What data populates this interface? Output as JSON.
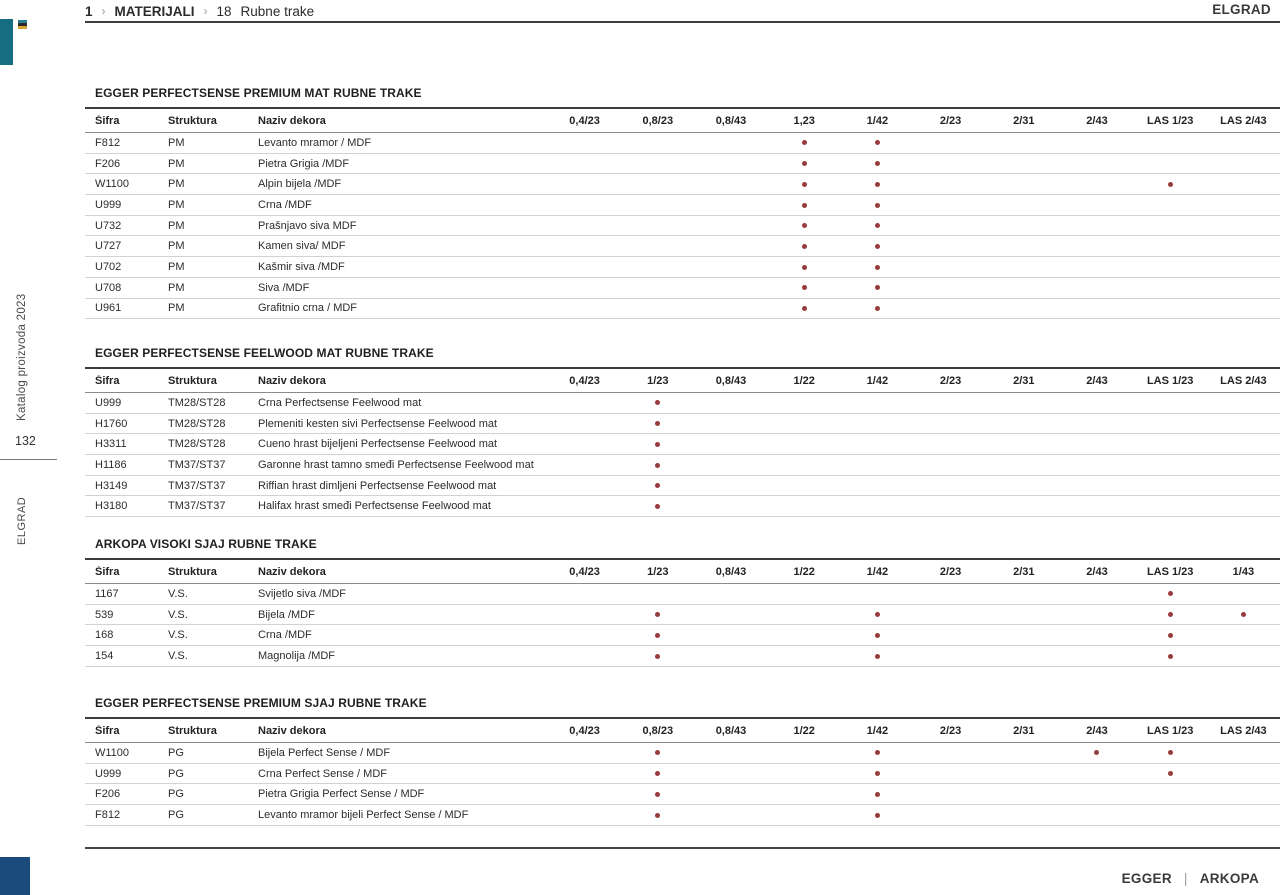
{
  "breadcrumb": {
    "level": "1",
    "sep": "›",
    "section": "MATERIJALI",
    "number": "18",
    "title": "Rubne trake"
  },
  "header": {
    "brand": "ELGRAD"
  },
  "sidebar": {
    "catalog": "Katalog proizvoda 2023",
    "page_number": "132",
    "brand": "ELGRAD"
  },
  "footer": {
    "brand_left": "EGGER",
    "sep": "|",
    "brand_right": "ARKOPA"
  },
  "colors": {
    "dot": "#963c3c",
    "teal_accent": "#156e80",
    "navy_accent": "#1b4b7d"
  },
  "tables": [
    {
      "title": "EGGER PERFECTSENSE PREMIUM MAT RUBNE TRAKE",
      "columns": [
        "Šifra",
        "Struktura",
        "Naziv dekora",
        "0,4/23",
        "0,8/23",
        "0,8/43",
        "1,23",
        "1/42",
        "2/23",
        "2/31",
        "2/43",
        "LAS 1/23",
        "LAS 2/43"
      ],
      "rows": [
        {
          "code": "F812",
          "structure": "PM",
          "decor": "Levanto  mramor / MDF",
          "marks": [
            0,
            0,
            0,
            1,
            1,
            0,
            0,
            0,
            0,
            0
          ]
        },
        {
          "code": "F206",
          "structure": "PM",
          "decor": "Pietra Grigia /MDF",
          "marks": [
            0,
            0,
            0,
            1,
            1,
            0,
            0,
            0,
            0,
            0
          ]
        },
        {
          "code": "W1100",
          "structure": "PM",
          "decor": "Alpin bijela /MDF",
          "marks": [
            0,
            0,
            0,
            1,
            1,
            0,
            0,
            0,
            1,
            0
          ]
        },
        {
          "code": "U999",
          "structure": "PM",
          "decor": "Crna /MDF",
          "marks": [
            0,
            0,
            0,
            1,
            1,
            0,
            0,
            0,
            0,
            0
          ]
        },
        {
          "code": "U732",
          "structure": "PM",
          "decor": "Prašnjavo siva MDF",
          "marks": [
            0,
            0,
            0,
            1,
            1,
            0,
            0,
            0,
            0,
            0
          ]
        },
        {
          "code": "U727",
          "structure": "PM",
          "decor": "Kamen siva/ MDF",
          "marks": [
            0,
            0,
            0,
            1,
            1,
            0,
            0,
            0,
            0,
            0
          ]
        },
        {
          "code": "U702",
          "structure": "PM",
          "decor": "Kašmir siva /MDF",
          "marks": [
            0,
            0,
            0,
            1,
            1,
            0,
            0,
            0,
            0,
            0
          ]
        },
        {
          "code": "U708",
          "structure": "PM",
          "decor": "Siva /MDF",
          "marks": [
            0,
            0,
            0,
            1,
            1,
            0,
            0,
            0,
            0,
            0
          ]
        },
        {
          "code": "U961",
          "structure": "PM",
          "decor": "Grafitnio crna / MDF",
          "marks": [
            0,
            0,
            0,
            1,
            1,
            0,
            0,
            0,
            0,
            0
          ]
        }
      ]
    },
    {
      "title": "EGGER PERFECTSENSE FEELWOOD MAT RUBNE TRAKE",
      "columns": [
        "Šifra",
        "Struktura",
        "Naziv dekora",
        "0,4/23",
        "1/23",
        "0,8/43",
        "1/22",
        "1/42",
        "2/23",
        "2/31",
        "2/43",
        "LAS 1/23",
        "LAS 2/43"
      ],
      "rows": [
        {
          "code": "U999",
          "structure": "TM28/ST28",
          "decor": "Crna Perfectsense Feelwood mat",
          "marks": [
            0,
            1,
            0,
            0,
            0,
            0,
            0,
            0,
            0,
            0
          ]
        },
        {
          "code": "H1760",
          "structure": "TM28/ST28",
          "decor": "Plemeniti kesten sivi Perfectsense Feelwood mat",
          "marks": [
            0,
            1,
            0,
            0,
            0,
            0,
            0,
            0,
            0,
            0
          ]
        },
        {
          "code": "H3311",
          "structure": "TM28/ST28",
          "decor": "Cueno hrast bijeljeni Perfectsense Feelwood mat",
          "marks": [
            0,
            1,
            0,
            0,
            0,
            0,
            0,
            0,
            0,
            0
          ]
        },
        {
          "code": "H1186",
          "structure": "TM37/ST37",
          "decor": "Garonne hrast tamno smeđi Perfectsense Feelwood mat",
          "marks": [
            0,
            1,
            0,
            0,
            0,
            0,
            0,
            0,
            0,
            0
          ]
        },
        {
          "code": "H3149",
          "structure": "TM37/ST37",
          "decor": "Riffian hrast dimljeni Perfectsense Feelwood mat",
          "marks": [
            0,
            1,
            0,
            0,
            0,
            0,
            0,
            0,
            0,
            0
          ]
        },
        {
          "code": "H3180",
          "structure": "TM37/ST37",
          "decor": "Halifax hrast smeđi Perfectsense Feelwood mat",
          "marks": [
            0,
            1,
            0,
            0,
            0,
            0,
            0,
            0,
            0,
            0
          ]
        }
      ]
    },
    {
      "title": "ARKOPA VISOKI SJAJ RUBNE TRAKE",
      "columns": [
        "Šifra",
        "Struktura",
        "Naziv dekora",
        "0,4/23",
        "1/23",
        "0,8/43",
        "1/22",
        "1/42",
        "2/23",
        "2/31",
        "2/43",
        "LAS 1/23",
        "1/43"
      ],
      "rows": [
        {
          "code": "1167",
          "structure": "V.S.",
          "decor": "Svijetlo siva /MDF",
          "marks": [
            0,
            0,
            0,
            0,
            0,
            0,
            0,
            0,
            1,
            0
          ]
        },
        {
          "code": "539",
          "structure": "V.S.",
          "decor": "Bijela /MDF",
          "marks": [
            0,
            1,
            0,
            0,
            1,
            0,
            0,
            0,
            1,
            1
          ]
        },
        {
          "code": "168",
          "structure": "V.S.",
          "decor": "Crna /MDF",
          "marks": [
            0,
            1,
            0,
            0,
            1,
            0,
            0,
            0,
            1,
            0
          ]
        },
        {
          "code": "154",
          "structure": "V.S.",
          "decor": "Magnolija /MDF",
          "marks": [
            0,
            1,
            0,
            0,
            1,
            0,
            0,
            0,
            1,
            0
          ]
        }
      ]
    },
    {
      "title": "EGGER PERFECTSENSE PREMIUM SJAJ RUBNE TRAKE",
      "columns": [
        "Šifra",
        "Struktura",
        "Naziv dekora",
        "0,4/23",
        "0,8/23",
        "0,8/43",
        "1/22",
        "1/42",
        "2/23",
        "2/31",
        "2/43",
        "LAS 1/23",
        "LAS 2/43"
      ],
      "rows": [
        {
          "code": "W1100",
          "structure": "PG",
          "decor": "Bijela Perfect Sense / MDF",
          "marks": [
            0,
            1,
            0,
            0,
            1,
            0,
            0,
            1,
            1,
            0
          ]
        },
        {
          "code": "U999",
          "structure": "PG",
          "decor": "Crna Perfect Sense / MDF",
          "marks": [
            0,
            1,
            0,
            0,
            1,
            0,
            0,
            0,
            1,
            0
          ]
        },
        {
          "code": "F206",
          "structure": "PG",
          "decor": "Pietra Grigia Perfect Sense / MDF",
          "marks": [
            0,
            1,
            0,
            0,
            1,
            0,
            0,
            0,
            0,
            0
          ]
        },
        {
          "code": "F812",
          "structure": "PG",
          "decor": "Levanto mramor bijeli  Perfect Sense / MDF",
          "marks": [
            0,
            1,
            0,
            0,
            1,
            0,
            0,
            0,
            0,
            0
          ]
        }
      ]
    }
  ]
}
